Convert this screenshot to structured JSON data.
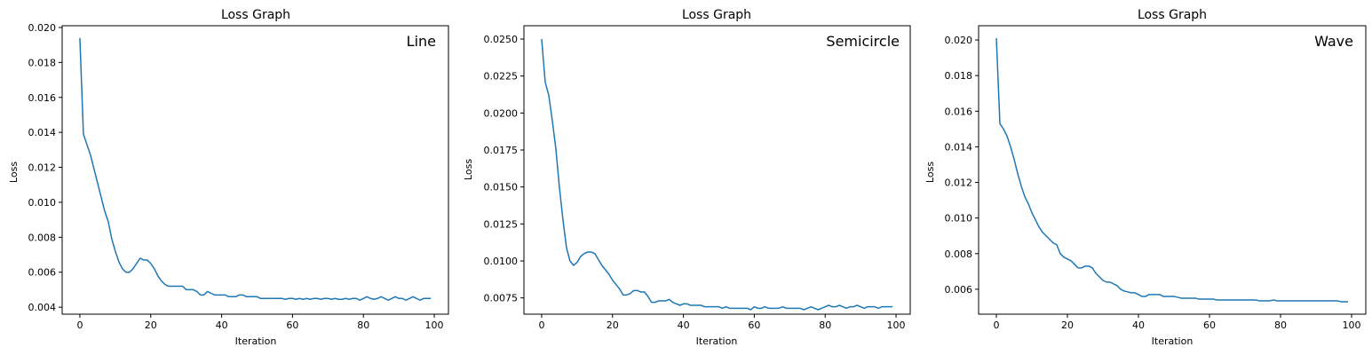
{
  "figure": {
    "background": "#ffffff",
    "line_color": "#1f77b4"
  },
  "chart_data": [
    {
      "type": "line",
      "title": "Loss Graph",
      "xlabel": "Iteration",
      "ylabel": "Loss",
      "annotation": "Line",
      "xlim": [
        -5,
        104
      ],
      "ylim": [
        0.0036,
        0.0201
      ],
      "xticks": [
        0,
        20,
        40,
        60,
        80,
        100
      ],
      "yticks": [
        0.004,
        0.006,
        0.008,
        0.01,
        0.012,
        0.014,
        0.016,
        0.018,
        0.02
      ],
      "ytick_labels": [
        "0.004",
        "0.006",
        "0.008",
        "0.010",
        "0.012",
        "0.014",
        "0.016",
        "0.018",
        "0.020"
      ],
      "grid": false,
      "series": [
        {
          "color": "#1f77b4",
          "y": [
            0.0194,
            0.0139,
            0.0133,
            0.0127,
            0.0119,
            0.0111,
            0.0103,
            0.0095,
            0.0089,
            0.0079,
            0.0072,
            0.0066,
            0.0062,
            0.006,
            0.006,
            0.0062,
            0.0065,
            0.0068,
            0.0067,
            0.0067,
            0.0065,
            0.0062,
            0.0058,
            0.0055,
            0.0053,
            0.0052,
            0.0052,
            0.0052,
            0.0052,
            0.0052,
            0.005,
            0.005,
            0.005,
            0.0049,
            0.0047,
            0.0047,
            0.0049,
            0.0048,
            0.0047,
            0.0047,
            0.0047,
            0.0047,
            0.0046,
            0.0046,
            0.0046,
            0.0047,
            0.0047,
            0.0046,
            0.0046,
            0.0046,
            0.0046,
            0.0045,
            0.0045,
            0.0045,
            0.0045,
            0.0045,
            0.0045,
            0.0045,
            0.00445,
            0.0045,
            0.0045,
            0.00445,
            0.0045,
            0.00445,
            0.0045,
            0.00445,
            0.0045,
            0.0045,
            0.00445,
            0.0045,
            0.0045,
            0.00445,
            0.0045,
            0.00445,
            0.00445,
            0.0045,
            0.00445,
            0.0045,
            0.0045,
            0.0044,
            0.0045,
            0.0046,
            0.0045,
            0.00445,
            0.0045,
            0.0046,
            0.0045,
            0.0044,
            0.0045,
            0.0046,
            0.0045,
            0.0045,
            0.0044,
            0.0045,
            0.0046,
            0.0045,
            0.0044,
            0.0045,
            0.0045,
            0.0045
          ]
        }
      ]
    },
    {
      "type": "line",
      "title": "Loss Graph",
      "xlabel": "Iteration",
      "ylabel": "Loss",
      "annotation": "Semicircle",
      "xlim": [
        -5,
        104
      ],
      "ylim": [
        0.0064,
        0.0259
      ],
      "xticks": [
        0,
        20,
        40,
        60,
        80,
        100
      ],
      "yticks": [
        0.0075,
        0.01,
        0.0125,
        0.015,
        0.0175,
        0.02,
        0.0225,
        0.025
      ],
      "ytick_labels": [
        "0.0075",
        "0.0100",
        "0.0125",
        "0.0150",
        "0.0175",
        "0.0200",
        "0.0225",
        "0.0250"
      ],
      "grid": false,
      "series": [
        {
          "color": "#1f77b4",
          "y": [
            0.025,
            0.0221,
            0.0212,
            0.0195,
            0.0176,
            0.015,
            0.0128,
            0.0109,
            0.01,
            0.0097,
            0.0099,
            0.0103,
            0.0105,
            0.0106,
            0.0106,
            0.0105,
            0.0101,
            0.0097,
            0.0094,
            0.0091,
            0.0087,
            0.0084,
            0.0081,
            0.0077,
            0.0077,
            0.0078,
            0.008,
            0.008,
            0.0079,
            0.0079,
            0.0076,
            0.0072,
            0.0072,
            0.0073,
            0.0073,
            0.0073,
            0.0074,
            0.0072,
            0.0071,
            0.007,
            0.0071,
            0.0071,
            0.007,
            0.007,
            0.007,
            0.007,
            0.0069,
            0.0069,
            0.0069,
            0.0069,
            0.0069,
            0.0068,
            0.0069,
            0.0068,
            0.0068,
            0.0068,
            0.0068,
            0.0068,
            0.0068,
            0.0067,
            0.0069,
            0.0068,
            0.0068,
            0.0069,
            0.0068,
            0.0068,
            0.0068,
            0.0068,
            0.0069,
            0.0068,
            0.0068,
            0.0068,
            0.0068,
            0.0068,
            0.0067,
            0.0068,
            0.0069,
            0.0068,
            0.0067,
            0.0068,
            0.0069,
            0.007,
            0.0069,
            0.0069,
            0.007,
            0.0069,
            0.0068,
            0.0069,
            0.0069,
            0.007,
            0.0069,
            0.0068,
            0.0069,
            0.0069,
            0.0069,
            0.0068,
            0.0069,
            0.0069,
            0.0069,
            0.0069
          ]
        }
      ]
    },
    {
      "type": "line",
      "title": "Loss Graph",
      "xlabel": "Iteration",
      "ylabel": "Loss",
      "annotation": "Wave",
      "xlim": [
        -5,
        104
      ],
      "ylim": [
        0.0046,
        0.0208
      ],
      "xticks": [
        0,
        20,
        40,
        60,
        80,
        100
      ],
      "yticks": [
        0.006,
        0.008,
        0.01,
        0.012,
        0.014,
        0.016,
        0.018,
        0.02
      ],
      "ytick_labels": [
        "0.006",
        "0.008",
        "0.010",
        "0.012",
        "0.014",
        "0.016",
        "0.018",
        "0.020"
      ],
      "grid": false,
      "series": [
        {
          "color": "#1f77b4",
          "y": [
            0.0201,
            0.0153,
            0.015,
            0.0146,
            0.014,
            0.0133,
            0.0125,
            0.0118,
            0.0112,
            0.0108,
            0.0103,
            0.0099,
            0.0095,
            0.0092,
            0.009,
            0.0088,
            0.0086,
            0.0085,
            0.008,
            0.0078,
            0.0077,
            0.0076,
            0.0074,
            0.0072,
            0.0072,
            0.0073,
            0.0073,
            0.0072,
            0.0069,
            0.0067,
            0.0065,
            0.0064,
            0.0064,
            0.0063,
            0.0062,
            0.006,
            0.0059,
            0.00585,
            0.0058,
            0.0058,
            0.0057,
            0.0056,
            0.0056,
            0.0057,
            0.0057,
            0.0057,
            0.0057,
            0.0056,
            0.0056,
            0.0056,
            0.0056,
            0.00555,
            0.0055,
            0.0055,
            0.0055,
            0.0055,
            0.0055,
            0.00545,
            0.00545,
            0.00545,
            0.00545,
            0.00545,
            0.0054,
            0.0054,
            0.0054,
            0.0054,
            0.0054,
            0.0054,
            0.0054,
            0.0054,
            0.0054,
            0.0054,
            0.0054,
            0.0054,
            0.00535,
            0.00535,
            0.00535,
            0.00535,
            0.0054,
            0.00535,
            0.00535,
            0.00535,
            0.00535,
            0.00535,
            0.00535,
            0.00535,
            0.00535,
            0.00535,
            0.00535,
            0.00535,
            0.00535,
            0.00535,
            0.00535,
            0.00535,
            0.00535,
            0.00535,
            0.00535,
            0.0053,
            0.0053,
            0.0053
          ]
        }
      ]
    }
  ]
}
